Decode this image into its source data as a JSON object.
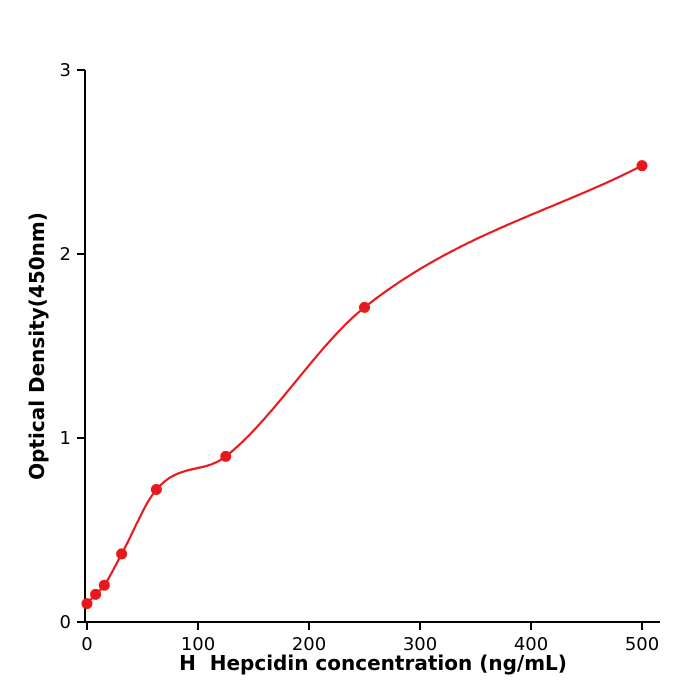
{
  "chart_data": {
    "type": "scatter",
    "title": "",
    "xlabel": "H  Hepcidin concentration (ng/mL)",
    "ylabel": "Optical Density(450nm)",
    "x": [
      0,
      7.8,
      15.6,
      31.2,
      62.5,
      125,
      250,
      500
    ],
    "y": [
      0.1,
      0.15,
      0.2,
      0.37,
      0.72,
      0.9,
      1.71,
      2.48
    ],
    "fit_curve": "smooth monotone curve through points",
    "xlim": [
      0,
      500
    ],
    "ylim": [
      0,
      3
    ],
    "xticks": [
      0,
      100,
      200,
      300,
      400,
      500
    ],
    "yticks": [
      0,
      1,
      2,
      3
    ],
    "grid": false,
    "legend": null,
    "point_color": "#e8191d",
    "line_color": "#e8191d",
    "axis_color": "#000000",
    "background_color": "#ffffff",
    "marker_radius": 5.5
  }
}
